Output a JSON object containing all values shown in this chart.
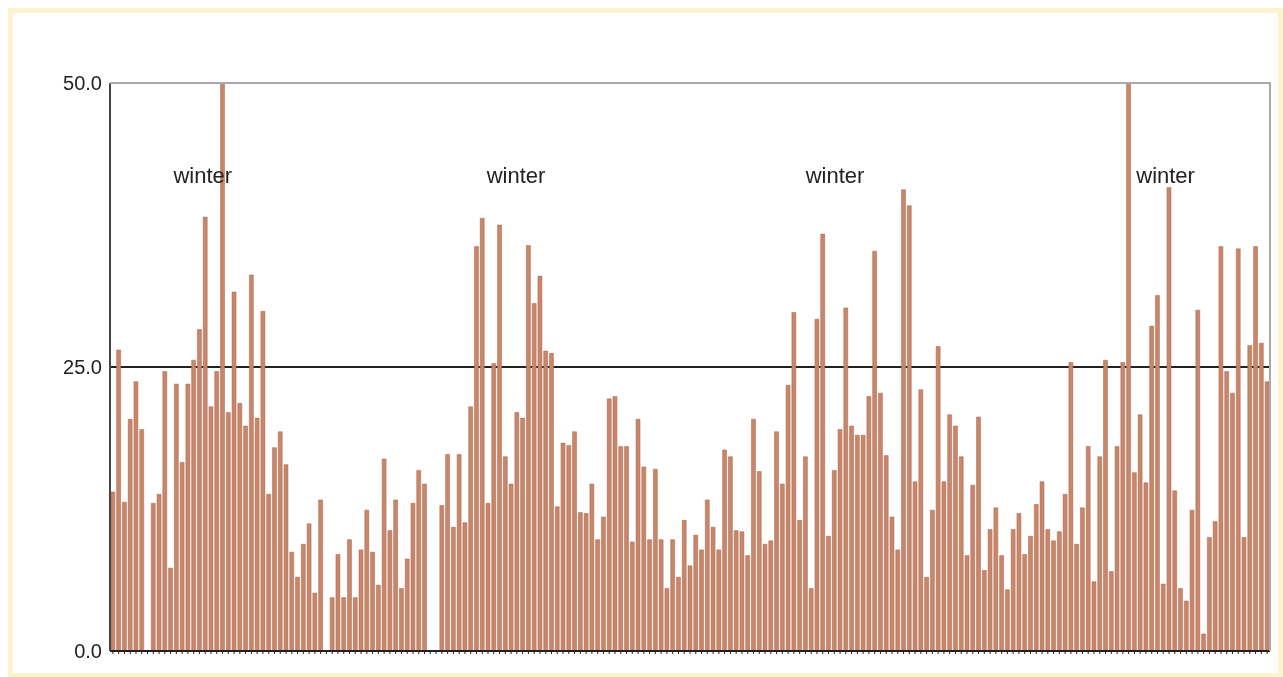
{
  "chart_data": {
    "type": "bar",
    "categories": [
      null,
      null,
      null,
      null,
      null,
      null,
      null,
      null,
      null,
      null,
      null,
      null,
      null,
      null,
      null,
      null,
      null,
      null,
      null,
      null,
      null,
      null,
      null,
      null,
      null,
      null,
      null,
      null,
      null,
      null,
      null,
      null,
      null,
      null,
      null,
      null,
      null,
      null,
      null,
      null,
      null,
      null,
      null,
      null,
      null,
      null,
      null,
      null,
      null,
      null,
      null,
      null,
      null,
      null,
      null,
      null,
      null,
      null,
      null,
      null,
      null,
      null,
      null,
      null,
      null,
      null,
      null,
      null,
      null,
      null,
      null,
      null,
      null,
      null,
      null,
      null,
      null,
      null,
      null,
      null,
      null,
      null,
      null,
      null,
      null,
      null,
      null,
      null,
      null,
      null,
      null,
      null,
      null,
      null,
      null,
      null,
      null,
      null,
      null,
      null,
      null,
      null,
      null,
      null,
      null,
      null,
      null,
      null,
      null,
      null,
      null,
      null,
      null,
      null,
      null,
      null,
      null,
      null,
      null,
      null,
      null,
      null,
      null,
      null,
      null,
      null,
      null,
      null,
      null,
      null,
      null,
      null,
      null,
      null,
      null,
      null,
      null,
      null,
      null,
      null,
      null,
      null,
      null,
      null,
      null,
      null,
      null,
      null,
      null,
      null,
      null,
      null,
      null,
      null,
      null,
      null,
      null,
      null,
      null,
      null,
      null,
      null,
      null,
      null,
      null,
      null,
      null,
      null,
      null,
      null,
      null,
      null,
      null,
      null,
      null,
      null,
      null,
      null,
      null,
      null,
      null,
      null,
      null,
      null,
      null,
      null,
      null,
      null,
      null,
      null,
      null,
      null,
      null,
      null,
      null,
      null,
      null,
      null,
      null,
      null,
      null
    ],
    "values": [
      14.0,
      26.5,
      13.1,
      20.4,
      23.7,
      19.5,
      null,
      13,
      13.8,
      24.6,
      7.3,
      23.5,
      16.6,
      23.5,
      25.6,
      28.3,
      38.2,
      21.5,
      24.6,
      50,
      21,
      31.6,
      21.8,
      19.8,
      33.1,
      20.5,
      29.9,
      13.8,
      17.9,
      19.3,
      16.4,
      8.7,
      6.5,
      9.4,
      11.2,
      5.1,
      13.3,
      null,
      4.7,
      8.5,
      4.7,
      9.8,
      4.7,
      8.9,
      12.4,
      8.7,
      5.8,
      16.9,
      10.6,
      13.3,
      5.5,
      8.1,
      13,
      15.9,
      14.7,
      null,
      null,
      12.8,
      17.3,
      10.9,
      17.3,
      11.3,
      21.5,
      35.6,
      38.1,
      13,
      25.3,
      37.5,
      17.1,
      14.7,
      21,
      20.5,
      35.7,
      30.6,
      33,
      26.4,
      26.2,
      12.7,
      18.3,
      18.1,
      19.3,
      12.2,
      12.1,
      14.7,
      9.8,
      11.8,
      22.2,
      22.4,
      18,
      18,
      9.6,
      20.4,
      16.2,
      9.8,
      16,
      9.8,
      5.5,
      9.8,
      6.5,
      11.5,
      7.5,
      10.2,
      8.9,
      13.3,
      10.9,
      8.9,
      17.7,
      17.1,
      10.6,
      10.5,
      8.4,
      20.4,
      15.8,
      9.4,
      9.7,
      19.3,
      14.7,
      23.4,
      29.8,
      11.5,
      17.1,
      5.5,
      29.2,
      36.7,
      10.1,
      15.9,
      19.5,
      30.2,
      19.8,
      19,
      19,
      22.4,
      35.2,
      22.7,
      17.2,
      11.8,
      8.9,
      40.6,
      39.2,
      14.9,
      23,
      6.5,
      12.4,
      26.8,
      14.9,
      20.8,
      19.8,
      17.1,
      8.4,
      14.6,
      20.6,
      7.1,
      10.7,
      12.6,
      8.4,
      5.4,
      10.7,
      12.1,
      8.5,
      10.1,
      12.9,
      14.9,
      10.7,
      9.7,
      10.5,
      13.8,
      25.4,
      9.4,
      12.6,
      18,
      6.1,
      17.1,
      25.6,
      7,
      18,
      25.4,
      50,
      15.7,
      20.8,
      14.8,
      28.6,
      31.3,
      5.9,
      40.8,
      14.1,
      5.5,
      4.4,
      12.4,
      30,
      1.5,
      10,
      11.4,
      35.6,
      24.6,
      22.7,
      35.4,
      10,
      26.9,
      35.6,
      27.1,
      23.7
    ],
    "color": "#c8866a",
    "ylim": [
      0,
      50
    ],
    "yticks": [
      {
        "value": 0,
        "label": "0.0"
      },
      {
        "value": 25,
        "label": "25.0"
      },
      {
        "value": 50,
        "label": "50.0"
      }
    ],
    "grid": "y",
    "tick_labels": "y",
    "annotations": [
      "winter",
      "winter",
      "winter",
      "winter"
    ]
  }
}
